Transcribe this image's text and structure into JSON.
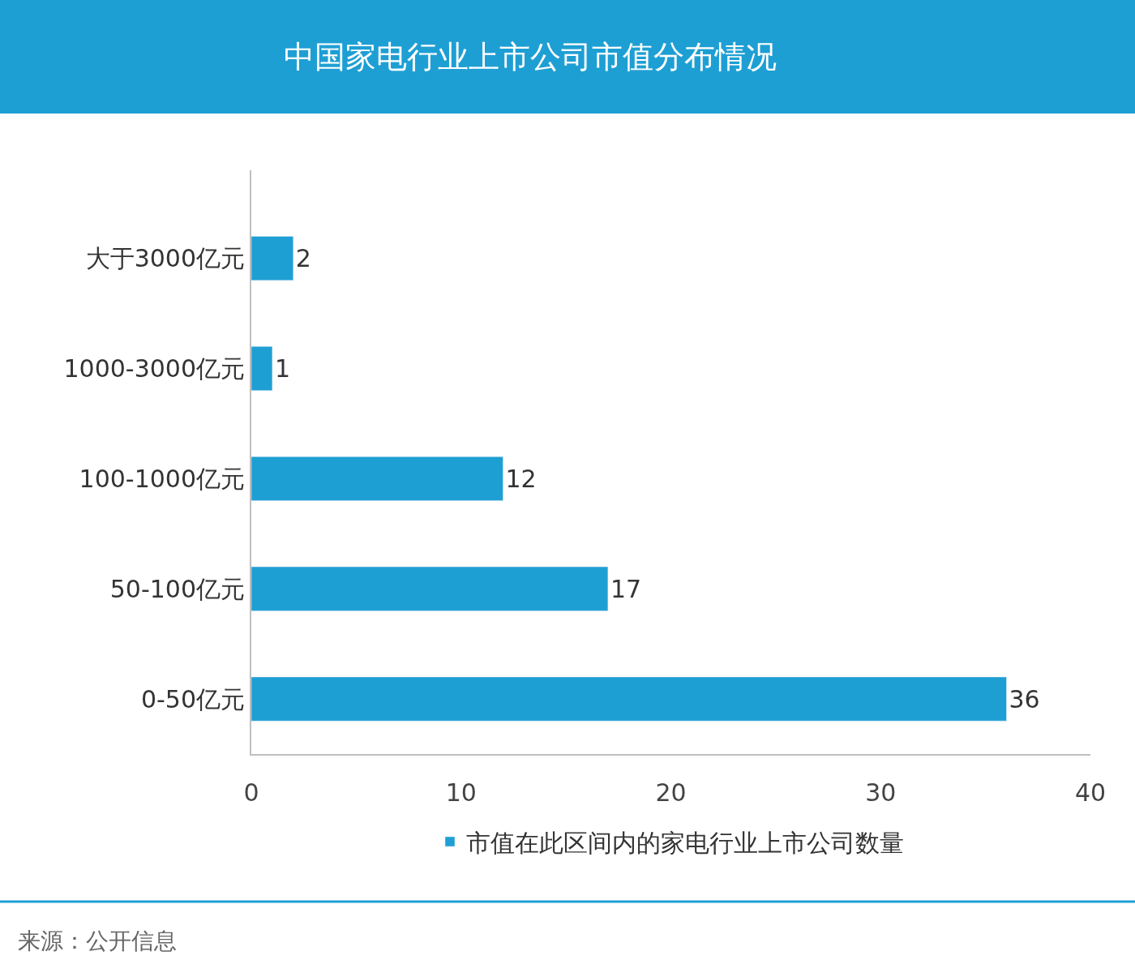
{
  "chart_data": {
    "type": "bar",
    "orientation": "horizontal",
    "title": "中国家电行业上市公司市值分布情况",
    "categories": [
      "大于3000亿元",
      "1000-3000亿元",
      "100-1000亿元",
      "50-100亿元",
      "0-50亿元"
    ],
    "series": [
      {
        "name": "市值在此区间内的家电行业上市公司数量",
        "color": "#1e9fd4",
        "values": [
          2,
          1,
          12,
          17,
          36
        ]
      }
    ],
    "xlim": [
      0,
      40
    ],
    "xticks": [
      0,
      10,
      20,
      30,
      40
    ],
    "legend": "bottom",
    "data_labels": true,
    "annotations": [
      "来源：公开信息"
    ]
  }
}
